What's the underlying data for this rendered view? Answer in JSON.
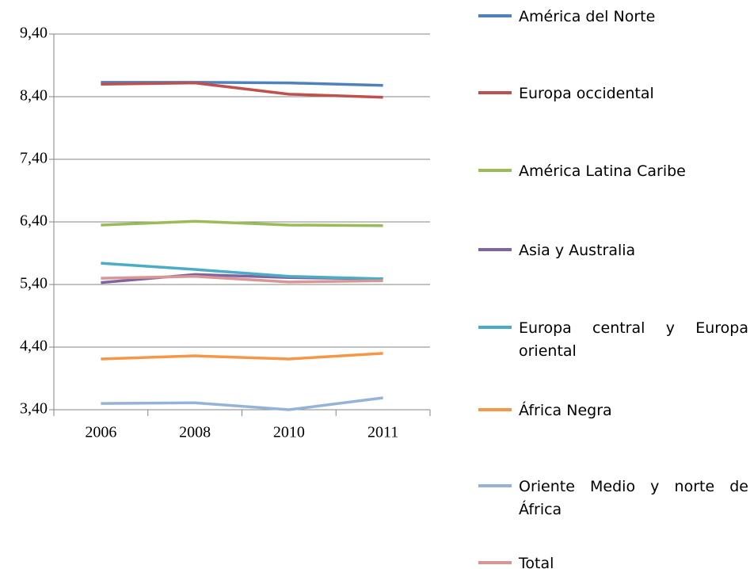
{
  "chart_data": {
    "type": "line",
    "categories": [
      "2006",
      "2008",
      "2010",
      "2011"
    ],
    "series": [
      {
        "name": "América del Norte",
        "color": "#4f81bd",
        "values": [
          8.63,
          8.63,
          8.62,
          8.58
        ]
      },
      {
        "name": "Europa occidental",
        "color": "#c0504d",
        "values": [
          8.6,
          8.62,
          8.44,
          8.39
        ]
      },
      {
        "name": "América Latina Caribe",
        "color": "#9bbb59",
        "values": [
          6.35,
          6.41,
          6.35,
          6.34
        ]
      },
      {
        "name": "Asia y Australia",
        "color": "#8064a2",
        "values": [
          5.43,
          5.56,
          5.51,
          5.49
        ]
      },
      {
        "name": "Europa central y Europa oriental",
        "color": "#4bacc6",
        "values": [
          5.74,
          5.64,
          5.53,
          5.49
        ]
      },
      {
        "name": "África Negra",
        "color": "#f79646",
        "values": [
          4.21,
          4.26,
          4.21,
          4.3
        ]
      },
      {
        "name": "Oriente Medio y norte de África",
        "color": "#95b3d7",
        "values": [
          3.5,
          3.51,
          3.4,
          3.59
        ]
      },
      {
        "name": "Total",
        "color": "#d99694",
        "values": [
          5.5,
          5.53,
          5.44,
          5.46
        ]
      }
    ],
    "ylim": [
      3.4,
      9.4
    ],
    "yticks": [
      {
        "value": 3.4,
        "label": "3,40"
      },
      {
        "value": 4.4,
        "label": "4,40"
      },
      {
        "value": 5.4,
        "label": "5,40"
      },
      {
        "value": 6.4,
        "label": "6,40"
      },
      {
        "value": 7.4,
        "label": "7,40"
      },
      {
        "value": 8.4,
        "label": "8,40"
      },
      {
        "value": 9.4,
        "label": "9,40"
      }
    ],
    "grid": true,
    "legend": "right"
  }
}
